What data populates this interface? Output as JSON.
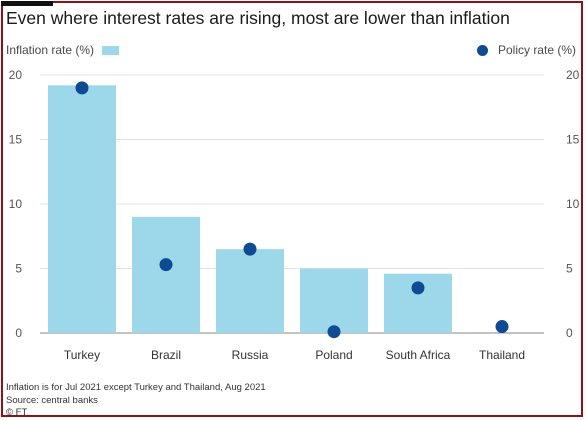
{
  "title": "Even where interest rates are rising, most are lower than inflation",
  "legend": {
    "inflation_label": "Inflation rate (%)",
    "policy_label": "Policy rate (%)"
  },
  "colors": {
    "bar": "#9dd8ea",
    "dot": "#0e4b94",
    "border": "#8f1016"
  },
  "chart_data": {
    "type": "bar",
    "title": "Even where interest rates are rising, most are lower than inflation",
    "categories": [
      "Turkey",
      "Brazil",
      "Russia",
      "Poland",
      "South Africa",
      "Thailand"
    ],
    "series": [
      {
        "name": "Inflation rate (%)",
        "kind": "bar",
        "values": [
          19.2,
          9.0,
          6.5,
          5.0,
          4.6,
          0
        ]
      },
      {
        "name": "Policy rate (%)",
        "kind": "dot",
        "values": [
          19.0,
          5.3,
          6.5,
          0.1,
          3.5,
          0.5
        ]
      }
    ],
    "yticks": [
      0,
      5,
      10,
      15,
      20
    ],
    "ylim": [
      0,
      20
    ],
    "ylabel_left": "",
    "ylabel_right": "",
    "grid": true,
    "dual_axis_labels": true
  },
  "footer": {
    "note": "Inflation is for Jul 2021 except Turkey and Thailand, Aug 2021",
    "source": "Source: central banks",
    "credit": "© FT"
  }
}
